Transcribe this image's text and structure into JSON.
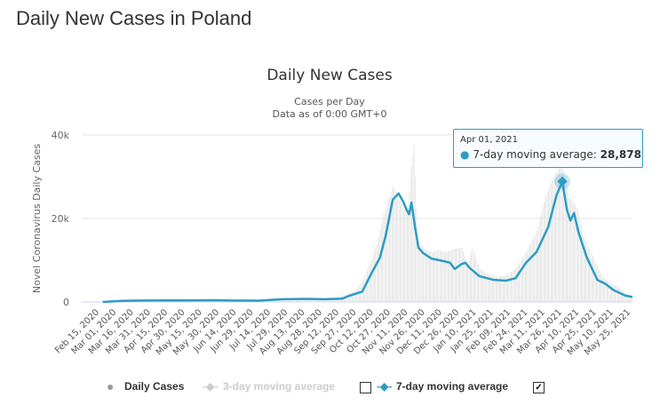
{
  "page_title": "Daily New Cases in Poland",
  "chart_data": {
    "type": "bar+line",
    "title": "Daily New Cases",
    "subtitle_lines": [
      "Cases per Day",
      "Data as of 0:00 GMT+0"
    ],
    "ylabel": "Novel Coronavirus Daily Cases",
    "xlabel": "",
    "ylim": [
      0,
      40000
    ],
    "yticks": [
      {
        "v": 0,
        "label": "0"
      },
      {
        "v": 20000,
        "label": "20k"
      },
      {
        "v": 40000,
        "label": "40k"
      }
    ],
    "x_range": [
      "2020-02-15",
      "2021-05-31"
    ],
    "xtick_labels": [
      "Feb 15, 2020",
      "Mar 01, 2020",
      "Mar 16, 2020",
      "Mar 31, 2020",
      "Apr 15, 2020",
      "Apr 30, 2020",
      "May 15, 2020",
      "May 30, 2020",
      "Jun 14, 2020",
      "Jun 29, 2020",
      "Jul 14, 2020",
      "Jul 29, 2020",
      "Aug 13, 2020",
      "Aug 28, 2020",
      "Sep 12, 2020",
      "Sep 27, 2020",
      "Oct 12, 2020",
      "Oct 27, 2020",
      "Nov 11, 2020",
      "Nov 26, 2020",
      "Dec 11, 2020",
      "Dec 26, 2020",
      "Jan 10, 2021",
      "Jan 25, 2021",
      "Feb 09, 2021",
      "Feb 24, 2021",
      "Mar 11, 2021",
      "Mar 26, 2021",
      "Apr 10, 2021",
      "Apr 25, 2021",
      "May 10, 2021",
      "May 25, 2021"
    ],
    "grid": true,
    "legend_position": "bottom",
    "colors": {
      "daily": "#e0e0e0",
      "avg7": "#2b9cc4",
      "avg3_disabled": "#cccccc"
    },
    "series": [
      {
        "name": "Daily Cases",
        "type": "bar",
        "points": [
          [
            "2020-03-04",
            0
          ],
          [
            "2020-03-20",
            300
          ],
          [
            "2020-04-05",
            450
          ],
          [
            "2020-04-20",
            400
          ],
          [
            "2020-05-10",
            350
          ],
          [
            "2020-06-08",
            550
          ],
          [
            "2020-06-25",
            300
          ],
          [
            "2020-07-15",
            300
          ],
          [
            "2020-08-08",
            800
          ],
          [
            "2020-08-25",
            900
          ],
          [
            "2020-09-10",
            600
          ],
          [
            "2020-09-25",
            1500
          ],
          [
            "2020-10-05",
            2500
          ],
          [
            "2020-10-12",
            5000
          ],
          [
            "2020-10-18",
            9000
          ],
          [
            "2020-10-24",
            13600
          ],
          [
            "2020-10-30",
            21000
          ],
          [
            "2020-11-04",
            25000
          ],
          [
            "2020-11-07",
            27900
          ],
          [
            "2020-11-12",
            25000
          ],
          [
            "2020-11-16",
            22000
          ],
          [
            "2020-11-20",
            23000
          ],
          [
            "2020-11-22",
            30000
          ],
          [
            "2020-11-25",
            37600
          ],
          [
            "2020-11-28",
            15000
          ],
          [
            "2020-12-03",
            13000
          ],
          [
            "2020-12-10",
            12000
          ],
          [
            "2020-12-16",
            12500
          ],
          [
            "2020-12-22",
            12000
          ],
          [
            "2020-12-29",
            12700
          ],
          [
            "2021-01-05",
            13000
          ],
          [
            "2021-01-10",
            9000
          ],
          [
            "2021-01-14",
            13000
          ],
          [
            "2021-01-20",
            8000
          ],
          [
            "2021-01-28",
            6500
          ],
          [
            "2021-02-05",
            6000
          ],
          [
            "2021-02-12",
            6500
          ],
          [
            "2021-02-20",
            8000
          ],
          [
            "2021-03-01",
            12000
          ],
          [
            "2021-03-10",
            17000
          ],
          [
            "2021-03-17",
            25000
          ],
          [
            "2021-03-24",
            29900
          ],
          [
            "2021-03-31",
            32900
          ],
          [
            "2021-04-03",
            30000
          ],
          [
            "2021-04-07",
            25000
          ],
          [
            "2021-04-10",
            24000
          ],
          [
            "2021-04-14",
            22000
          ],
          [
            "2021-04-20",
            15000
          ],
          [
            "2021-04-27",
            11000
          ],
          [
            "2021-05-05",
            6000
          ],
          [
            "2021-05-12",
            4500
          ],
          [
            "2021-05-19",
            3500
          ],
          [
            "2021-05-26",
            1800
          ],
          [
            "2021-05-31",
            1500
          ]
        ]
      },
      {
        "name": "3-day moving average",
        "type": "line",
        "visible": false
      },
      {
        "name": "7-day moving average",
        "type": "line",
        "visible": true,
        "points": [
          [
            "2020-03-04",
            0
          ],
          [
            "2020-03-20",
            250
          ],
          [
            "2020-04-05",
            350
          ],
          [
            "2020-04-25",
            380
          ],
          [
            "2020-05-15",
            360
          ],
          [
            "2020-06-08",
            420
          ],
          [
            "2020-06-25",
            330
          ],
          [
            "2020-07-15",
            320
          ],
          [
            "2020-08-05",
            650
          ],
          [
            "2020-08-25",
            750
          ],
          [
            "2020-09-10",
            650
          ],
          [
            "2020-09-25",
            800
          ],
          [
            "2020-10-01",
            1500
          ],
          [
            "2020-10-12",
            2500
          ],
          [
            "2020-10-20",
            7000
          ],
          [
            "2020-10-27",
            10600
          ],
          [
            "2020-11-01",
            16000
          ],
          [
            "2020-11-07",
            24500
          ],
          [
            "2020-11-12",
            26000
          ],
          [
            "2020-11-16",
            24000
          ],
          [
            "2020-11-19",
            22000
          ],
          [
            "2020-11-21",
            21000
          ],
          [
            "2020-11-23",
            23800
          ],
          [
            "2020-11-26",
            18000
          ],
          [
            "2020-11-29",
            13000
          ],
          [
            "2020-12-03",
            11700
          ],
          [
            "2020-12-10",
            10400
          ],
          [
            "2020-12-20",
            9800
          ],
          [
            "2020-12-26",
            9400
          ],
          [
            "2020-12-30",
            7900
          ],
          [
            "2021-01-05",
            9100
          ],
          [
            "2021-01-08",
            9400
          ],
          [
            "2021-01-12",
            8100
          ],
          [
            "2021-01-20",
            6200
          ],
          [
            "2021-02-01",
            5300
          ],
          [
            "2021-02-12",
            5100
          ],
          [
            "2021-02-20",
            5700
          ],
          [
            "2021-03-01",
            9400
          ],
          [
            "2021-03-10",
            12000
          ],
          [
            "2021-03-20",
            18000
          ],
          [
            "2021-03-27",
            25500
          ],
          [
            "2021-04-01",
            28878
          ],
          [
            "2021-04-05",
            22000
          ],
          [
            "2021-04-08",
            19500
          ],
          [
            "2021-04-11",
            21300
          ],
          [
            "2021-04-15",
            16600
          ],
          [
            "2021-04-22",
            10600
          ],
          [
            "2021-05-01",
            5300
          ],
          [
            "2021-05-08",
            4300
          ],
          [
            "2021-05-15",
            2800
          ],
          [
            "2021-05-25",
            1500
          ],
          [
            "2021-05-31",
            1200
          ]
        ]
      }
    ],
    "tooltip": {
      "date": "Apr 01, 2021",
      "series": "7-day moving average",
      "label": "7-day moving average:",
      "value": "28,878"
    }
  },
  "legend": {
    "daily": "Daily Cases",
    "avg3": "3-day moving average",
    "avg3_checked": false,
    "avg7": "7-day moving average",
    "avg7_checked": true
  }
}
